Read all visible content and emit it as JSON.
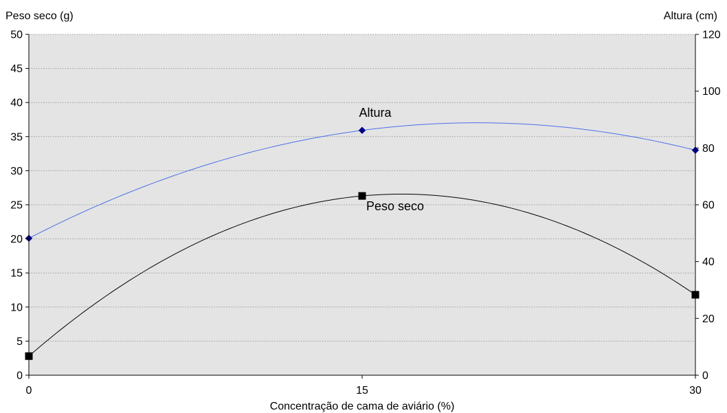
{
  "chart_data": {
    "type": "line",
    "xlabel": "Concentração de cama de aviário (%)",
    "ylabel_left": "Peso seco (g)",
    "ylabel_right": "Altura (cm)",
    "x_ticks": [
      0,
      15,
      30
    ],
    "x_tick_labels": [
      "0",
      "15",
      "30"
    ],
    "xlim": [
      0,
      30
    ],
    "ylim_left": [
      0,
      50
    ],
    "ylim_right": [
      0,
      120
    ],
    "y_left_ticks": [
      0,
      5,
      10,
      15,
      20,
      25,
      30,
      35,
      40,
      45,
      50
    ],
    "y_left_tick_labels": [
      "0",
      "5",
      "10",
      "15",
      "20",
      "25",
      "30",
      "35",
      "40",
      "45",
      "50"
    ],
    "y_right_ticks": [
      0,
      20,
      40,
      60,
      80,
      100,
      120
    ],
    "y_right_tick_labels": [
      "0",
      "20",
      "40",
      "60",
      "80",
      "100",
      "120"
    ],
    "grid": true,
    "series": [
      {
        "name": "Altura",
        "axis": "right",
        "marker": "diamond",
        "color": "#4a6fe8",
        "marker_color": "#00008b",
        "x": [
          0,
          15,
          30
        ],
        "values": [
          48.2,
          86.2,
          79.2
        ]
      },
      {
        "name": "Peso seco",
        "axis": "left",
        "marker": "square",
        "color": "#000000",
        "marker_color": "#000000",
        "x": [
          0,
          15,
          30
        ],
        "values": [
          2.8,
          26.3,
          11.8
        ]
      }
    ]
  },
  "colors": {
    "plot_background": "#e4e4e4",
    "grid": "#9a9a9a"
  }
}
